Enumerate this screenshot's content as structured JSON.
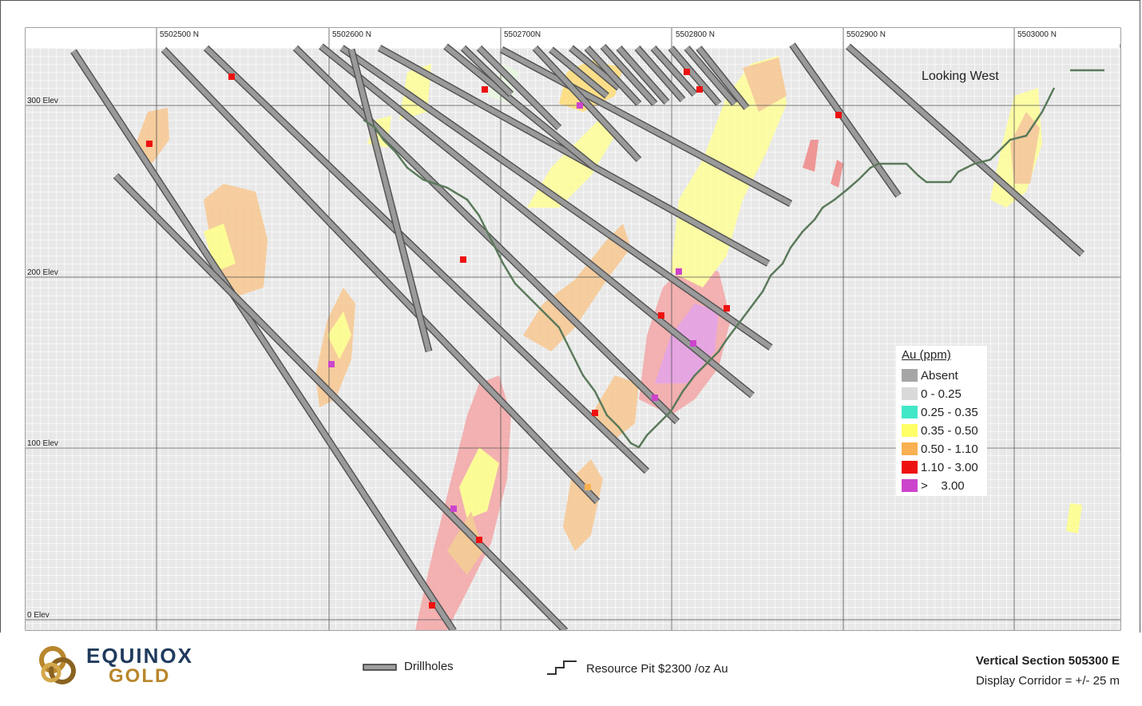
{
  "section": {
    "northing_labels": [
      "5502500 N",
      "5502600 N",
      "5502700N",
      "5502800 N",
      "5502900 N",
      "5503000 N"
    ],
    "elevation_labels": [
      "300 Elev",
      "200 Elev",
      "100 Elev",
      "0 Elev"
    ],
    "view_label": "Looking West"
  },
  "legend": {
    "title": "Au (ppm)",
    "items": [
      {
        "label": "Absent",
        "color": "#a6a6a6"
      },
      {
        "label": "0 - 0.25",
        "color": "#d9d9d9"
      },
      {
        "label": "0.25 - 0.35",
        "color": "#40e8c8"
      },
      {
        "label": "0.35 - 0.50",
        "color": "#ffff66"
      },
      {
        "label": "0.50 - 1.10",
        "color": "#f8b050"
      },
      {
        "label": "1.10 - 3.00",
        "color": "#ee1111"
      },
      {
        "label": ">    3.00",
        "color": "#cc44cc"
      }
    ]
  },
  "footer": {
    "logo_line1": "EQUINOX",
    "logo_line2": "GOLD",
    "drillholes_label": "Drillholes",
    "pit_label": "Resource Pit $2300 /oz Au",
    "section_title": "Vertical Section 505300 E",
    "corridor": "Display Corridor = +/- 25 m"
  },
  "colors": {
    "pit_line": "#5b7a5b",
    "drillhole": "#8a8a8a",
    "brand_navy": "#1f3a5c",
    "brand_gold": "#b8862b"
  }
}
